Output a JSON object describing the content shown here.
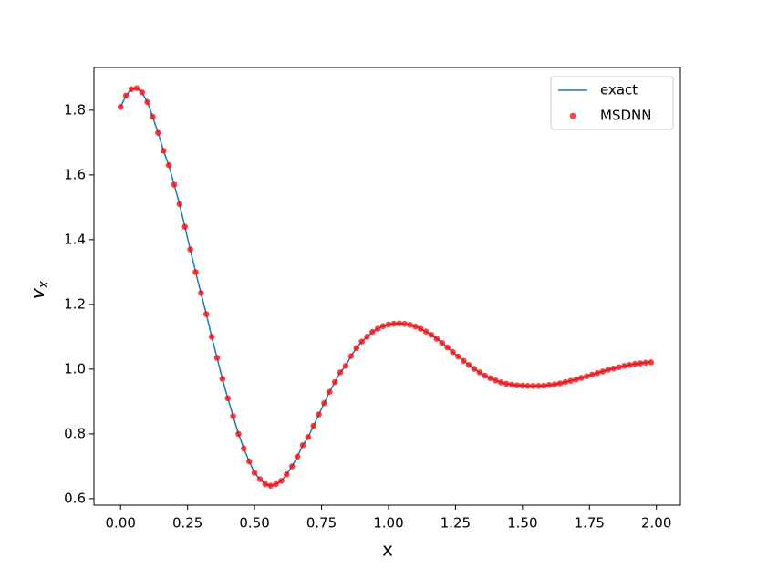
{
  "chart_data": {
    "type": "line-scatter",
    "x_label": "x",
    "y_label": "v",
    "y_label_subscript": "x",
    "x": [
      0,
      0.02,
      0.04,
      0.06,
      0.08,
      0.1,
      0.12,
      0.14,
      0.16,
      0.18,
      0.2,
      0.22,
      0.24,
      0.26,
      0.28,
      0.3,
      0.32,
      0.34,
      0.36,
      0.38,
      0.4,
      0.42,
      0.44,
      0.46,
      0.48,
      0.5,
      0.52,
      0.54,
      0.56,
      0.58,
      0.6,
      0.62,
      0.64,
      0.66,
      0.68,
      0.7,
      0.72,
      0.74,
      0.76,
      0.78,
      0.8,
      0.82,
      0.84,
      0.86,
      0.88,
      0.9,
      0.92,
      0.94,
      0.96,
      0.98,
      1,
      1.02,
      1.04,
      1.06,
      1.08,
      1.1,
      1.12,
      1.14,
      1.16,
      1.18,
      1.2,
      1.22,
      1.24,
      1.26,
      1.28,
      1.3,
      1.32,
      1.34,
      1.36,
      1.38,
      1.4,
      1.42,
      1.44,
      1.46,
      1.48,
      1.5,
      1.52,
      1.54,
      1.56,
      1.58,
      1.6,
      1.62,
      1.64,
      1.66,
      1.68,
      1.7,
      1.72,
      1.74,
      1.76,
      1.78,
      1.8,
      1.82,
      1.84,
      1.86,
      1.88,
      1.9,
      1.92,
      1.94,
      1.96,
      1.98
    ],
    "series": [
      {
        "name": "exact",
        "kind": "line",
        "color": "#1f77b4",
        "values": [
          1.81,
          1.845,
          1.865,
          1.868,
          1.855,
          1.825,
          1.78,
          1.73,
          1.675,
          1.63,
          1.57,
          1.51,
          1.44,
          1.37,
          1.3,
          1.235,
          1.17,
          1.1,
          1.035,
          0.97,
          0.91,
          0.855,
          0.8,
          0.755,
          0.715,
          0.68,
          0.66,
          0.645,
          0.64,
          0.645,
          0.655,
          0.675,
          0.7,
          0.73,
          0.765,
          0.79,
          0.825,
          0.86,
          0.895,
          0.93,
          0.96,
          0.99,
          1.01,
          1.04,
          1.065,
          1.085,
          1.1,
          1.115,
          1.125,
          1.133,
          1.138,
          1.14,
          1.141,
          1.14,
          1.137,
          1.132,
          1.125,
          1.116,
          1.106,
          1.094,
          1.081,
          1.067,
          1.053,
          1.039,
          1.026,
          1.013,
          1.001,
          0.99,
          0.98,
          0.972,
          0.965,
          0.959,
          0.955,
          0.952,
          0.95,
          0.949,
          0.948,
          0.948,
          0.948,
          0.949,
          0.951,
          0.953,
          0.956,
          0.96,
          0.964,
          0.968,
          0.973,
          0.978,
          0.983,
          0.988,
          0.993,
          0.998,
          1.002,
          1.006,
          1.01,
          1.013,
          1.016,
          1.018,
          1.02,
          1.021
        ]
      },
      {
        "name": "MSDNN",
        "kind": "scatter",
        "color": "#ff0000",
        "values": [
          1.81,
          1.845,
          1.865,
          1.868,
          1.855,
          1.825,
          1.78,
          1.73,
          1.675,
          1.63,
          1.57,
          1.51,
          1.44,
          1.37,
          1.3,
          1.235,
          1.17,
          1.1,
          1.035,
          0.97,
          0.91,
          0.855,
          0.8,
          0.755,
          0.715,
          0.68,
          0.66,
          0.645,
          0.64,
          0.645,
          0.655,
          0.675,
          0.7,
          0.73,
          0.765,
          0.79,
          0.825,
          0.86,
          0.895,
          0.93,
          0.96,
          0.99,
          1.01,
          1.04,
          1.065,
          1.085,
          1.1,
          1.115,
          1.125,
          1.133,
          1.138,
          1.14,
          1.141,
          1.14,
          1.137,
          1.132,
          1.125,
          1.116,
          1.106,
          1.094,
          1.081,
          1.067,
          1.053,
          1.039,
          1.026,
          1.013,
          1.001,
          0.99,
          0.98,
          0.972,
          0.965,
          0.959,
          0.955,
          0.952,
          0.95,
          0.949,
          0.948,
          0.948,
          0.948,
          0.949,
          0.951,
          0.953,
          0.956,
          0.96,
          0.964,
          0.968,
          0.973,
          0.978,
          0.983,
          0.988,
          0.993,
          0.998,
          1.002,
          1.006,
          1.01,
          1.013,
          1.016,
          1.018,
          1.02,
          1.021
        ]
      }
    ],
    "xlim": [
      -0.0995,
      2.0895
    ],
    "ylim": [
      0.58,
      1.932
    ],
    "xticks": [
      {
        "value": 0,
        "label": "0.00"
      },
      0.25,
      {
        "value": 0.5,
        "label": "0.50"
      },
      0.75,
      {
        "value": 1,
        "label": "1.00"
      },
      1.25,
      {
        "value": 1.5,
        "label": "1.50"
      },
      1.75,
      {
        "value": 2,
        "label": "2.00"
      }
    ],
    "yticks": [
      0.6,
      0.8,
      {
        "value": 1,
        "label": "1.0"
      },
      1.2,
      1.4,
      1.6,
      1.8
    ],
    "grid": false,
    "legend": "upper right"
  }
}
